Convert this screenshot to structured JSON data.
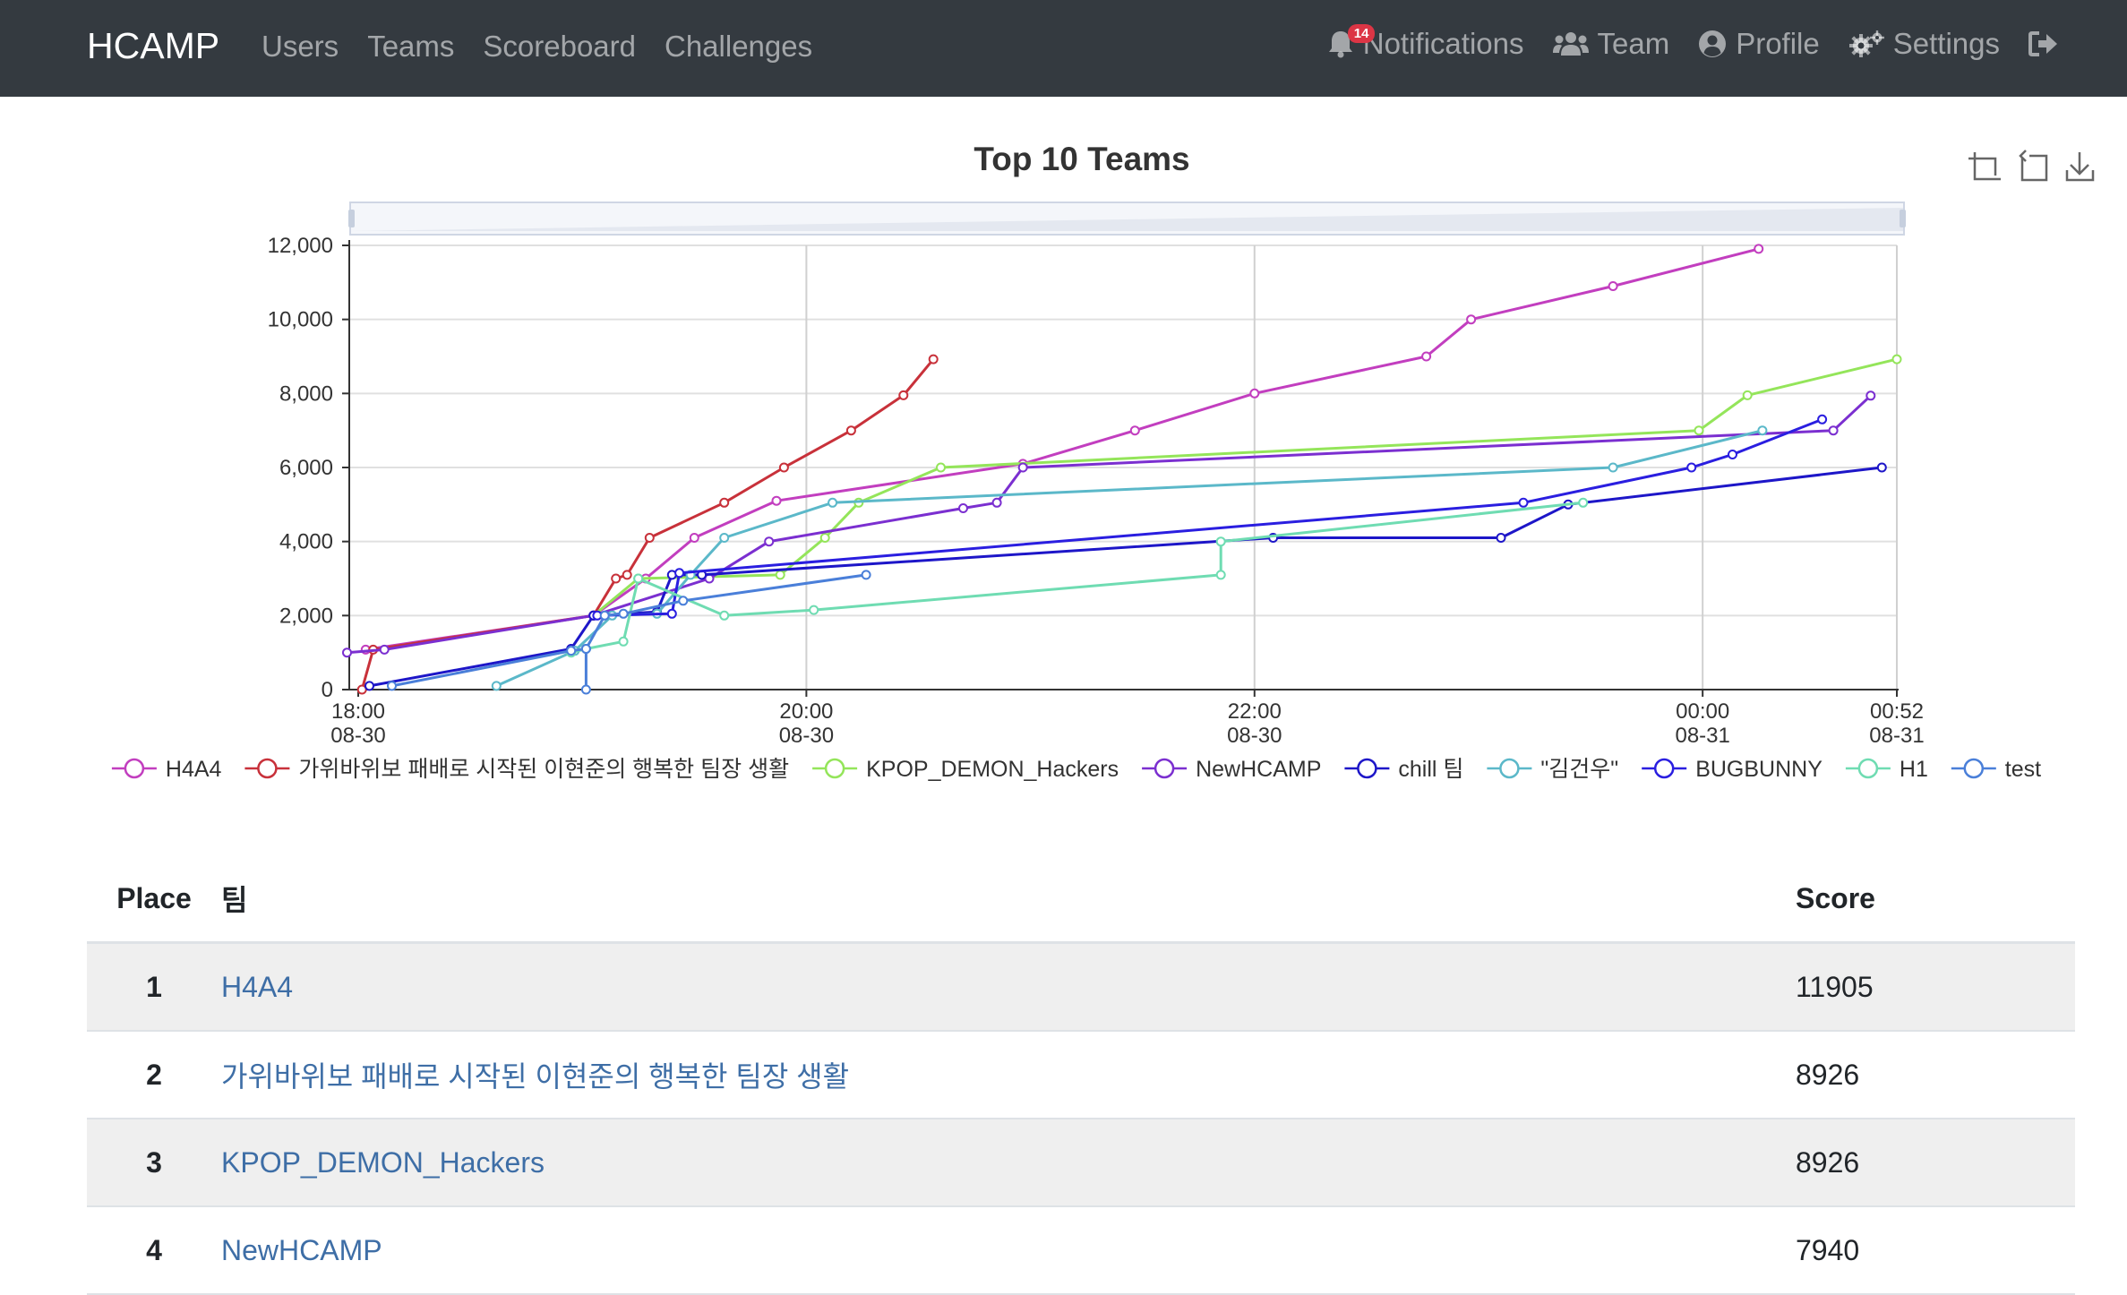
{
  "nav": {
    "brand": "HCAMP",
    "left_links": [
      "Users",
      "Teams",
      "Scoreboard",
      "Challenges"
    ],
    "notifications_label": "Notifications",
    "notifications_count": "14",
    "team_label": "Team",
    "profile_label": "Profile",
    "settings_label": "Settings"
  },
  "chart_data": {
    "type": "line",
    "title": "Top 10 Teams",
    "xlabel": "",
    "ylabel": "",
    "ylim": [
      0,
      12000
    ],
    "y_ticks": [
      0,
      2000,
      4000,
      6000,
      8000,
      10000,
      12000
    ],
    "y_tick_labels": [
      "0",
      "2,000",
      "4,000",
      "6,000",
      "8,000",
      "10,000",
      "12,000"
    ],
    "x_unit": "minutes since 08-30 18:00",
    "xlim": [
      0,
      412
    ],
    "x_ticks": [
      {
        "t": 0,
        "time": "18:00",
        "date": "08-30"
      },
      {
        "t": 120,
        "time": "20:00",
        "date": "08-30"
      },
      {
        "t": 240,
        "time": "22:00",
        "date": "08-30"
      },
      {
        "t": 360,
        "time": "00:00",
        "date": "08-31"
      },
      {
        "t": 412,
        "time": "00:52",
        "date": "08-31"
      }
    ],
    "legend_position": "bottom",
    "series": [
      {
        "name": "H4A4",
        "color": "#c23ebf",
        "points": [
          [
            2,
            1080
          ],
          [
            63,
            2000
          ],
          [
            77,
            3000
          ],
          [
            90,
            4100
          ],
          [
            112,
            5100
          ],
          [
            178,
            6100
          ],
          [
            208,
            7000
          ],
          [
            240,
            8000
          ],
          [
            286,
            9000
          ],
          [
            298,
            10000
          ],
          [
            336,
            10900
          ],
          [
            375,
            11905
          ]
        ]
      },
      {
        "name": "가위바위보 패배로 시작된 이현준의 행복한 팀장 생활",
        "color": "#c8313a",
        "points": [
          [
            1,
            0
          ],
          [
            4,
            1080
          ],
          [
            63,
            2000
          ],
          [
            69,
            3000
          ],
          [
            72,
            3100
          ],
          [
            78,
            4100
          ],
          [
            98,
            5050
          ],
          [
            114,
            6000
          ],
          [
            132,
            7000
          ],
          [
            146,
            7950
          ],
          [
            154,
            8926
          ]
        ]
      },
      {
        "name": "KPOP_DEMON_Hackers",
        "color": "#94e55a",
        "points": [
          [
            63,
            2000
          ],
          [
            75,
            3000
          ],
          [
            113,
            3100
          ],
          [
            125,
            4100
          ],
          [
            134,
            5050
          ],
          [
            156,
            6000
          ],
          [
            359,
            7000
          ],
          [
            372,
            7950
          ],
          [
            412,
            8926
          ]
        ]
      },
      {
        "name": "NewHCAMP",
        "color": "#7b2fd0",
        "points": [
          [
            -3,
            1000
          ],
          [
            7,
            1080
          ],
          [
            63,
            2000
          ],
          [
            94,
            3000
          ],
          [
            110,
            4000
          ],
          [
            162,
            4900
          ],
          [
            171,
            5050
          ],
          [
            178,
            6000
          ],
          [
            395,
            7000
          ],
          [
            405,
            7940
          ]
        ]
      },
      {
        "name": "chill 팀",
        "color": "#1d16c8",
        "points": [
          [
            3,
            100
          ],
          [
            57,
            1100
          ],
          [
            63,
            2000
          ],
          [
            80,
            2100
          ],
          [
            84,
            3100
          ],
          [
            92,
            3100
          ],
          [
            245,
            4100
          ],
          [
            306,
            4100
          ],
          [
            324,
            5000
          ],
          [
            408,
            6000
          ]
        ]
      },
      {
        "name": "\"김건우\"",
        "color": "#5bb8c9",
        "points": [
          [
            37,
            100
          ],
          [
            58,
            1050
          ],
          [
            68,
            2000
          ],
          [
            80,
            2050
          ],
          [
            89,
            3100
          ],
          [
            98,
            4100
          ],
          [
            127,
            5050
          ],
          [
            336,
            6000
          ],
          [
            376,
            7000
          ]
        ]
      },
      {
        "name": "BUGBUNNY",
        "color": "#2a1ee0",
        "points": [
          [
            64,
            2000
          ],
          [
            84,
            2050
          ],
          [
            86,
            3150
          ],
          [
            312,
            5050
          ],
          [
            357,
            6000
          ],
          [
            368,
            6350
          ],
          [
            392,
            7300
          ]
        ]
      },
      {
        "name": "H1",
        "color": "#6fdcb2",
        "points": [
          [
            57,
            1000
          ],
          [
            61,
            1100
          ],
          [
            71,
            1300
          ],
          [
            75,
            3000
          ],
          [
            98,
            2000
          ],
          [
            122,
            2150
          ],
          [
            231,
            3100
          ],
          [
            231,
            4000
          ],
          [
            328,
            5050
          ]
        ]
      },
      {
        "name": "test",
        "color": "#4a7fd9",
        "points": [
          [
            9,
            100
          ],
          [
            57,
            1050
          ],
          [
            61,
            1100
          ],
          [
            61,
            0
          ],
          [
            61,
            1100
          ],
          [
            66,
            2000
          ],
          [
            71,
            2050
          ],
          [
            87,
            2400
          ],
          [
            136,
            3100
          ]
        ]
      }
    ]
  },
  "table": {
    "headers": [
      "Place",
      "팀",
      "Score"
    ],
    "rows": [
      {
        "place": "1",
        "team": "H4A4",
        "score": "11905"
      },
      {
        "place": "2",
        "team": "가위바위보 패배로 시작된 이현준의 행복한 팀장 생활",
        "score": "8926"
      },
      {
        "place": "3",
        "team": "KPOP_DEMON_Hackers",
        "score": "8926"
      },
      {
        "place": "4",
        "team": "NewHCAMP",
        "score": "7940"
      }
    ]
  }
}
